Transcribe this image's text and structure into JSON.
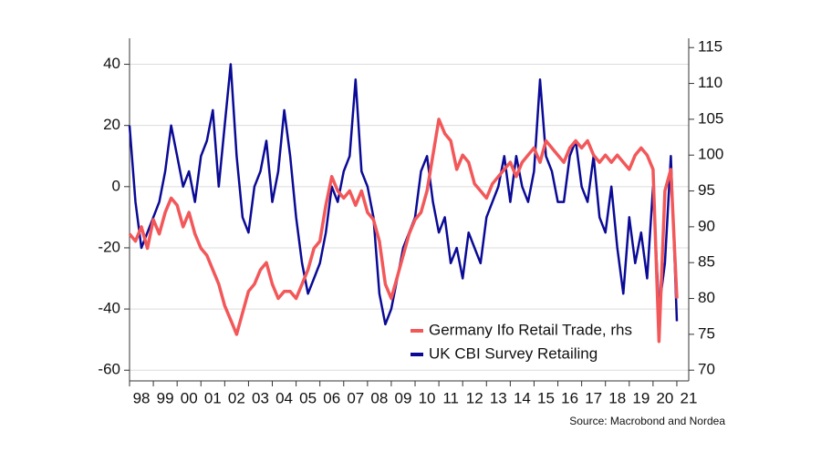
{
  "chart_data": {
    "type": "line",
    "source": "Source: Macrobond and Nordea",
    "x": [
      1998,
      1998.25,
      1998.5,
      1998.75,
      1999,
      1999.25,
      1999.5,
      1999.75,
      2000,
      2000.25,
      2000.5,
      2000.75,
      2001,
      2001.25,
      2001.5,
      2001.75,
      2002,
      2002.25,
      2002.5,
      2002.75,
      2003,
      2003.25,
      2003.5,
      2003.75,
      2004,
      2004.25,
      2004.5,
      2004.75,
      2005,
      2005.25,
      2005.5,
      2005.75,
      2006,
      2006.25,
      2006.5,
      2006.75,
      2007,
      2007.25,
      2007.5,
      2007.75,
      2008,
      2008.25,
      2008.5,
      2008.75,
      2009,
      2009.25,
      2009.5,
      2009.75,
      2010,
      2010.25,
      2010.5,
      2010.75,
      2011,
      2011.25,
      2011.5,
      2011.75,
      2012,
      2012.25,
      2012.5,
      2012.75,
      2013,
      2013.25,
      2013.5,
      2013.75,
      2014,
      2014.25,
      2014.5,
      2014.75,
      2015,
      2015.25,
      2015.5,
      2015.75,
      2016,
      2016.25,
      2016.5,
      2016.75,
      2017,
      2017.25,
      2017.5,
      2017.75,
      2018,
      2018.25,
      2018.5,
      2018.75,
      2019,
      2019.25,
      2019.5,
      2019.75,
      2020,
      2020.25,
      2020.5,
      2020.75,
      2021
    ],
    "xlim": [
      1998,
      2021.5
    ],
    "xticks": [
      {
        "value": 1998,
        "label": "98"
      },
      {
        "value": 1999,
        "label": "99"
      },
      {
        "value": 2000,
        "label": "00"
      },
      {
        "value": 2001,
        "label": "01"
      },
      {
        "value": 2002,
        "label": "02"
      },
      {
        "value": 2003,
        "label": "03"
      },
      {
        "value": 2004,
        "label": "04"
      },
      {
        "value": 2005,
        "label": "05"
      },
      {
        "value": 2006,
        "label": "06"
      },
      {
        "value": 2007,
        "label": "07"
      },
      {
        "value": 2008,
        "label": "08"
      },
      {
        "value": 2009,
        "label": "09"
      },
      {
        "value": 2010,
        "label": "10"
      },
      {
        "value": 2011,
        "label": "11"
      },
      {
        "value": 2012,
        "label": "12"
      },
      {
        "value": 2013,
        "label": "13"
      },
      {
        "value": 2014,
        "label": "14"
      },
      {
        "value": 2015,
        "label": "15"
      },
      {
        "value": 2016,
        "label": "16"
      },
      {
        "value": 2017,
        "label": "17"
      },
      {
        "value": 2018,
        "label": "18"
      },
      {
        "value": 2019,
        "label": "19"
      },
      {
        "value": 2020,
        "label": "20"
      },
      {
        "value": 2021,
        "label": "21"
      }
    ],
    "ylim": [
      -63.5,
      48.5
    ],
    "yticks": [
      -60,
      -40,
      -20,
      0,
      20,
      40
    ],
    "y2lim": [
      68.5,
      116.3
    ],
    "y2ticks": [
      70,
      75,
      80,
      85,
      90,
      95,
      100,
      105,
      110,
      115
    ],
    "grid": true,
    "legend": "bottom-right",
    "series": [
      {
        "name": "Germany Ifo Retail Trade, rhs",
        "color": "#f2585a",
        "axis": "y2",
        "values": [
          89,
          88,
          90,
          87,
          91,
          89,
          92,
          94,
          93,
          90,
          92,
          89,
          87,
          86,
          84,
          82,
          79,
          77,
          75,
          78,
          81,
          82,
          84,
          85,
          82,
          80,
          81,
          81,
          80,
          82,
          84,
          87,
          88,
          93,
          97,
          95,
          94,
          95,
          93,
          95,
          92,
          91,
          88,
          82,
          80,
          83,
          86,
          89,
          91,
          92,
          95,
          100,
          105,
          103,
          102,
          98,
          100,
          99,
          96,
          95,
          94,
          96,
          97,
          98,
          99,
          97,
          99,
          100,
          101,
          99,
          102,
          101,
          100,
          99,
          101,
          102,
          101,
          102,
          100,
          99,
          100,
          99,
          100,
          99,
          98,
          100,
          101,
          100,
          98,
          74,
          95,
          98,
          80
        ]
      },
      {
        "name": "UK CBI Survey Retailing",
        "color": "#0a0a96",
        "values": [
          20,
          -5,
          -20,
          -15,
          -10,
          -5,
          5,
          20,
          10,
          0,
          5,
          -5,
          10,
          15,
          25,
          0,
          20,
          40,
          10,
          -10,
          -15,
          0,
          5,
          15,
          -5,
          5,
          25,
          10,
          -10,
          -25,
          -35,
          -30,
          -25,
          -15,
          0,
          -5,
          5,
          10,
          35,
          5,
          0,
          -10,
          -35,
          -45,
          -40,
          -30,
          -20,
          -15,
          -10,
          5,
          10,
          -5,
          -15,
          -10,
          -25,
          -20,
          -30,
          -15,
          -20,
          -25,
          -10,
          -5,
          0,
          10,
          -5,
          10,
          0,
          -5,
          5,
          35,
          10,
          5,
          -5,
          -5,
          10,
          15,
          0,
          -5,
          10,
          -10,
          -15,
          0,
          -20,
          -35,
          -10,
          -25,
          -15,
          -30,
          0,
          -40,
          -25,
          10,
          -44
        ]
      }
    ]
  }
}
